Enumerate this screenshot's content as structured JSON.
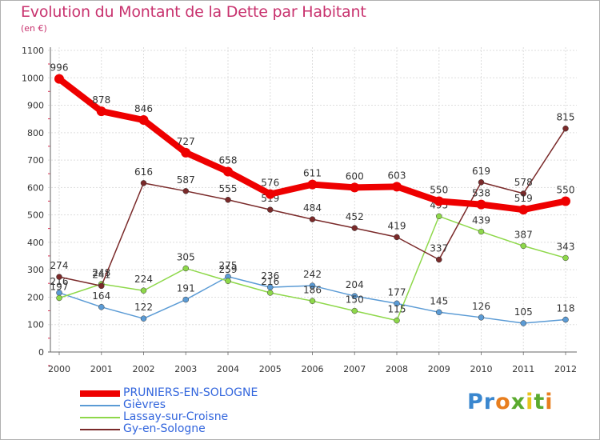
{
  "title": "Evolution du Montant de la Dette par Habitant",
  "unit": "(en €)",
  "logo": {
    "text": "Proxiti",
    "letter_colors": [
      "#3a87cf",
      "#3a87cf",
      "#e87e1e",
      "#5aaa2e",
      "#e8c41e",
      "#5aaa2e",
      "#e87e1e"
    ]
  },
  "chart_data": {
    "type": "line",
    "title": "Evolution du Montant de la Dette par Habitant",
    "ylabel": "(en €)",
    "xlabel": "",
    "x": [
      2000,
      2001,
      2002,
      2003,
      2004,
      2005,
      2006,
      2007,
      2008,
      2009,
      2010,
      2011,
      2012
    ],
    "ylim": [
      0,
      1100
    ],
    "yticks": [
      0,
      100,
      200,
      300,
      400,
      500,
      600,
      700,
      800,
      900,
      1000,
      1100
    ],
    "grid": true,
    "legend_position": "bottom-left",
    "series": [
      {
        "name": "PRUNIERS-EN-SOLOGNE",
        "color": "#ee0000",
        "emphasis": true,
        "values": [
          996,
          878,
          846,
          727,
          658,
          576,
          611,
          600,
          603,
          550,
          538,
          519,
          550
        ],
        "labels": [
          "996",
          "878",
          "846",
          "727",
          "658",
          "576",
          "611",
          "600",
          "603",
          "550",
          "538",
          "519",
          "550"
        ]
      },
      {
        "name": "Gièvres",
        "color": "#5b9bd5",
        "emphasis": false,
        "values": [
          216,
          164,
          122,
          191,
          275,
          236,
          242,
          204,
          177,
          145,
          126,
          105,
          118
        ],
        "labels": [
          "216",
          "164",
          "122",
          "191",
          "275",
          "236",
          "242",
          "204",
          "177",
          "145",
          "126",
          "105",
          "118"
        ]
      },
      {
        "name": "Lassay-sur-Croisne",
        "color": "#8ed84a",
        "emphasis": false,
        "values": [
          197,
          248,
          224,
          305,
          259,
          216,
          186,
          150,
          115,
          495,
          439,
          387,
          343
        ],
        "labels": [
          "197",
          "248",
          "224",
          "305",
          "259",
          "216",
          "186",
          "150",
          "115",
          "495",
          "439",
          "387",
          "343"
        ]
      },
      {
        "name": "Gy-en-Sologne",
        "color": "#7a2a2a",
        "emphasis": false,
        "values": [
          274,
          241,
          616,
          587,
          555,
          519,
          484,
          452,
          419,
          337,
          619,
          578,
          815
        ],
        "labels": [
          "274",
          "241",
          "616",
          "587",
          "555",
          "519",
          "484",
          "452",
          "419",
          "337",
          "619",
          "578",
          "815"
        ]
      }
    ]
  }
}
